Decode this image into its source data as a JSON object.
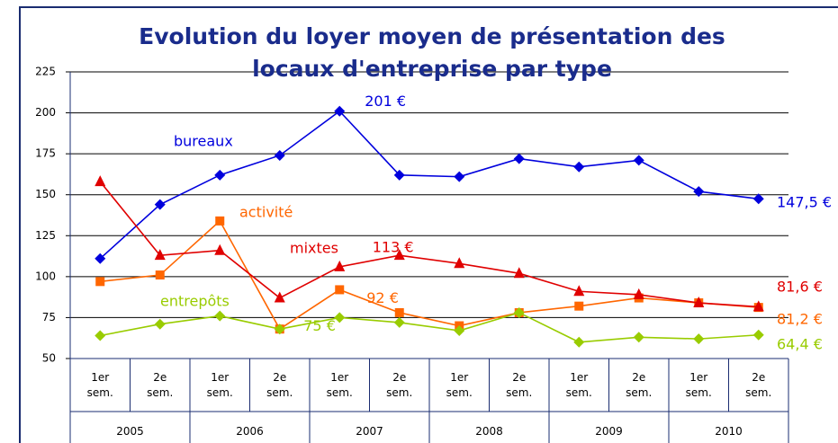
{
  "chart_data": {
    "type": "line",
    "title": [
      "Evolution du loyer moyen de présentation des",
      "locaux d'entreprise par type"
    ],
    "categories": [
      "1er sem.",
      "2e sem.",
      "1er sem.",
      "2e sem.",
      "1er sem.",
      "2e sem.",
      "1er sem.",
      "2e sem.",
      "1er sem.",
      "2e sem.",
      "1er sem.",
      "2e sem."
    ],
    "years": [
      "2005",
      "2006",
      "2007",
      "2008",
      "2009",
      "2010"
    ],
    "ylim": [
      50,
      225
    ],
    "yticks": [
      50,
      75,
      100,
      125,
      150,
      175,
      200,
      225
    ],
    "grid": true,
    "series": [
      {
        "name": "bureaux",
        "color": "#0000dd",
        "marker": "diamond",
        "values": [
          111,
          144,
          162,
          174,
          201,
          162,
          161,
          172,
          167,
          171,
          152,
          147.5
        ],
        "value_labels": [
          null,
          null,
          null,
          null,
          "201 €",
          null,
          null,
          null,
          null,
          null,
          null,
          "147,5 €"
        ]
      },
      {
        "name": "activité",
        "color": "#ff6600",
        "marker": "square",
        "values": [
          97,
          101,
          134,
          68,
          92,
          78,
          70,
          78,
          82,
          87,
          84,
          81.2
        ],
        "value_labels": [
          null,
          null,
          null,
          null,
          "92 €",
          null,
          null,
          null,
          null,
          null,
          null,
          "81,2 €"
        ]
      },
      {
        "name": "mixtes",
        "color": "#e00000",
        "marker": "triangle",
        "values": [
          158,
          113,
          116,
          87,
          106,
          113,
          108,
          102,
          91,
          89,
          84,
          81.6
        ],
        "value_labels": [
          null,
          null,
          null,
          null,
          null,
          "113 €",
          null,
          null,
          null,
          null,
          null,
          "81,6 €"
        ]
      },
      {
        "name": "entrepôts",
        "color": "#99cc00",
        "marker": "diamond",
        "values": [
          64,
          71,
          76,
          68,
          75,
          72,
          67,
          78,
          60,
          63,
          62,
          64.4
        ],
        "value_labels": [
          null,
          null,
          null,
          null,
          "75 €",
          null,
          null,
          null,
          null,
          null,
          null,
          "64,4 €"
        ]
      }
    ]
  }
}
